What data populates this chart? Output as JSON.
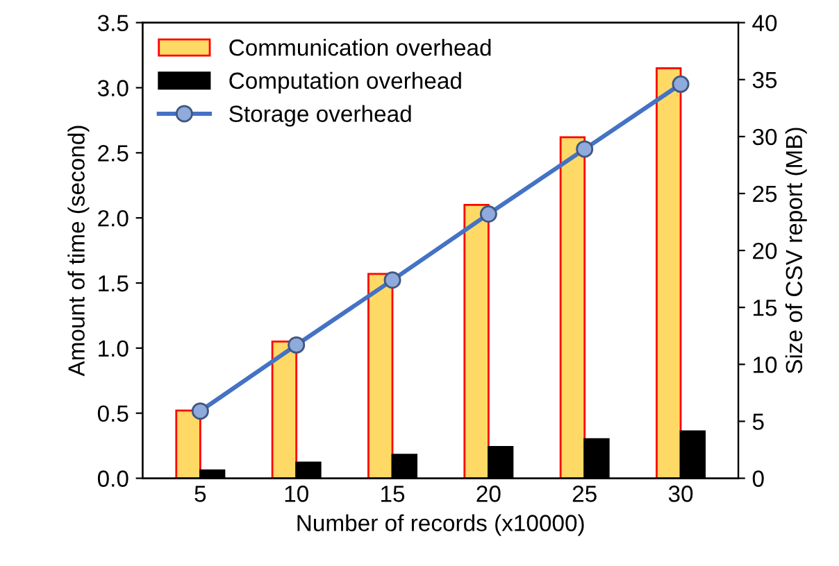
{
  "chart_data": {
    "type": "bar",
    "xlabel": "Number of records (x10000)",
    "ylabel": "Amount of time (second)",
    "y2label": "Size of CSV report (MB)",
    "categories": [
      "5",
      "10",
      "15",
      "20",
      "25",
      "30"
    ],
    "series": [
      {
        "name": "Communication overhead",
        "color": "#ffd966",
        "values": [
          0.52,
          1.05,
          1.57,
          2.1,
          2.62,
          3.15
        ]
      },
      {
        "name": "Computation overhead",
        "color": "#000000",
        "values": [
          0.06,
          0.12,
          0.18,
          0.24,
          0.3,
          0.36
        ]
      },
      {
        "name": "Storage overhead",
        "type": "line",
        "axis": "y2",
        "color": "#4472c4",
        "marker": "circle",
        "values": [
          5.9,
          11.7,
          17.4,
          23.2,
          28.9,
          34.6
        ]
      }
    ],
    "ylim": [
      0,
      3.5
    ],
    "yticks": [
      {
        "value": 0,
        "label": "0.0"
      },
      {
        "value": 0.5,
        "label": "0.5"
      },
      {
        "value": 1,
        "label": "1.0"
      },
      {
        "value": 1.5,
        "label": "1.5"
      },
      {
        "value": 2,
        "label": "2.0"
      },
      {
        "value": 2.5,
        "label": "2.5"
      },
      {
        "value": 3,
        "label": "3.0"
      },
      {
        "value": 3.5,
        "label": "3.5"
      }
    ],
    "y2lim": [
      0,
      40
    ],
    "y2ticks": [
      0,
      5,
      10,
      15,
      20,
      25,
      30,
      35,
      40
    ],
    "grid": false,
    "legend": "top left"
  }
}
